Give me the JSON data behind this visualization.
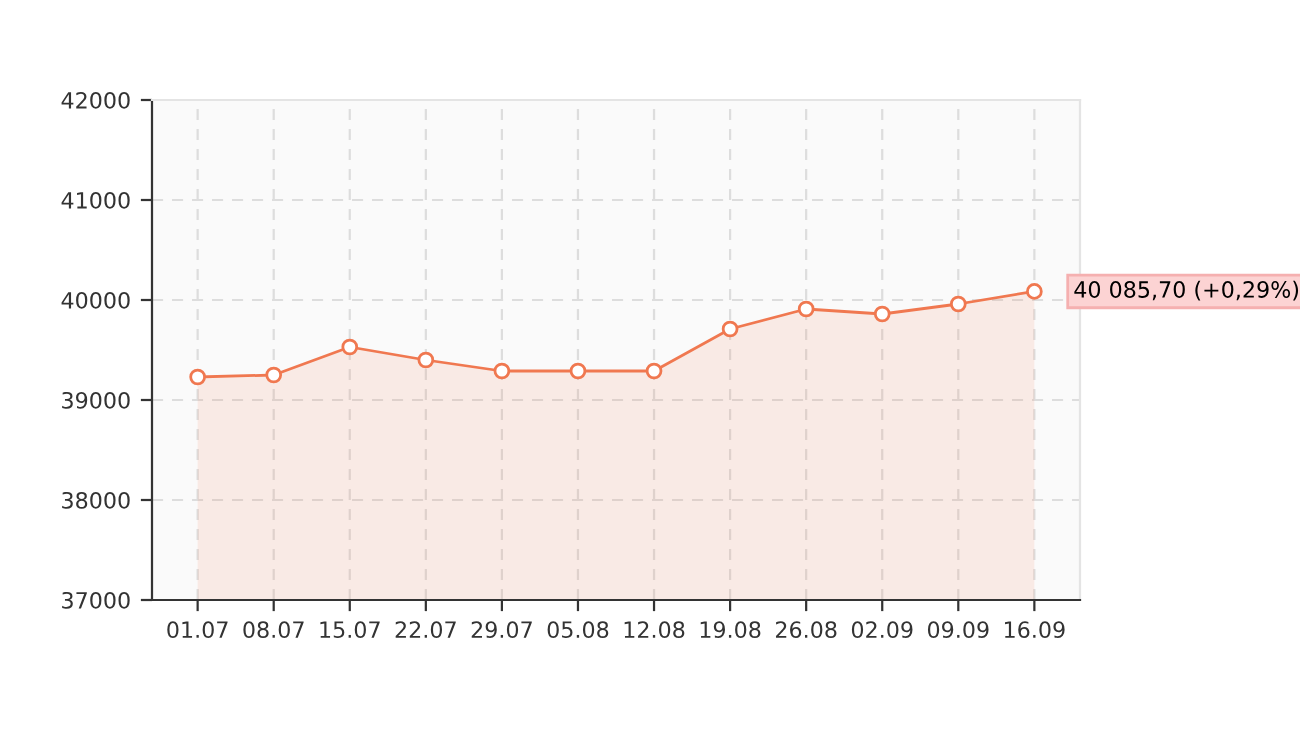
{
  "chart_data": {
    "type": "area",
    "categories": [
      "01.07",
      "08.07",
      "15.07",
      "22.07",
      "29.07",
      "05.08",
      "12.08",
      "19.08",
      "26.08",
      "02.09",
      "09.09",
      "16.09"
    ],
    "series": [
      {
        "color": "#f07850",
        "values": [
          39230,
          39250,
          39530,
          39400,
          39290,
          39290,
          39290,
          39710,
          39910,
          39860,
          39960,
          40085.7
        ]
      }
    ],
    "ylim": [
      37000,
      42000
    ],
    "yticks": [
      37000,
      38000,
      39000,
      40000,
      41000,
      42000
    ],
    "grid": true,
    "marker": "circle",
    "annotations": [
      {
        "text": "40 085,70 (+0,29%)",
        "x": "16.09",
        "y": 40085.7
      }
    ]
  }
}
